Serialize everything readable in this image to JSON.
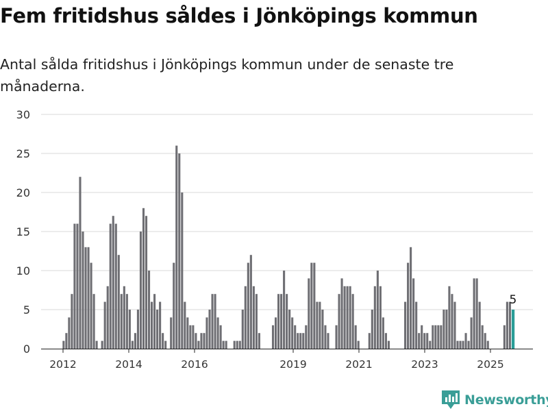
{
  "title": "Fem fritidshus såldes i Jönköpings kommun",
  "subtitle": "Antal sålda fritidshus i Jönköpings kommun under de senaste tre månaderna.",
  "brand": "Newsworthy",
  "colors": {
    "bar": "#6e6e73",
    "highlight": "#2a9d97",
    "grid": "#d9d9d9",
    "brand": "#3a9e97"
  },
  "chart_data": {
    "type": "bar",
    "title": "Fem fritidshus såldes i Jönköpings kommun",
    "xlabel": "",
    "ylabel": "",
    "ylim": [
      0,
      30
    ],
    "y_ticks": [
      0,
      5,
      10,
      15,
      20,
      25,
      30
    ],
    "x_ticks": [
      "2012",
      "2014",
      "2016",
      "2019",
      "2021",
      "2023",
      "2025"
    ],
    "grid": true,
    "value_label": "5",
    "values": [
      1,
      2,
      4,
      7,
      16,
      16,
      22,
      15,
      13,
      13,
      11,
      7,
      1,
      null,
      1,
      6,
      8,
      16,
      17,
      16,
      12,
      7,
      8,
      7,
      5,
      1,
      2,
      5,
      15,
      18,
      17,
      10,
      6,
      7,
      5,
      6,
      2,
      1,
      null,
      4,
      11,
      26,
      25,
      20,
      6,
      4,
      3,
      3,
      2,
      1,
      2,
      2,
      4,
      5,
      7,
      7,
      4,
      3,
      1,
      1,
      null,
      null,
      1,
      1,
      1,
      5,
      8,
      11,
      12,
      8,
      7,
      2,
      null,
      null,
      null,
      null,
      3,
      4,
      7,
      7,
      10,
      7,
      5,
      4,
      3,
      2,
      2,
      2,
      3,
      9,
      11,
      11,
      6,
      6,
      5,
      3,
      2,
      null,
      null,
      3,
      7,
      9,
      8,
      8,
      8,
      7,
      3,
      1,
      null,
      null,
      null,
      2,
      5,
      8,
      10,
      8,
      4,
      2,
      1,
      null,
      null,
      null,
      null,
      null,
      6,
      11,
      13,
      9,
      6,
      2,
      3,
      2,
      2,
      1,
      3,
      3,
      3,
      3,
      5,
      5,
      8,
      7,
      6,
      1,
      1,
      1,
      2,
      1,
      4,
      9,
      9,
      6,
      3,
      2,
      1,
      null,
      null,
      null,
      null,
      null,
      3,
      6,
      6,
      5
    ]
  }
}
